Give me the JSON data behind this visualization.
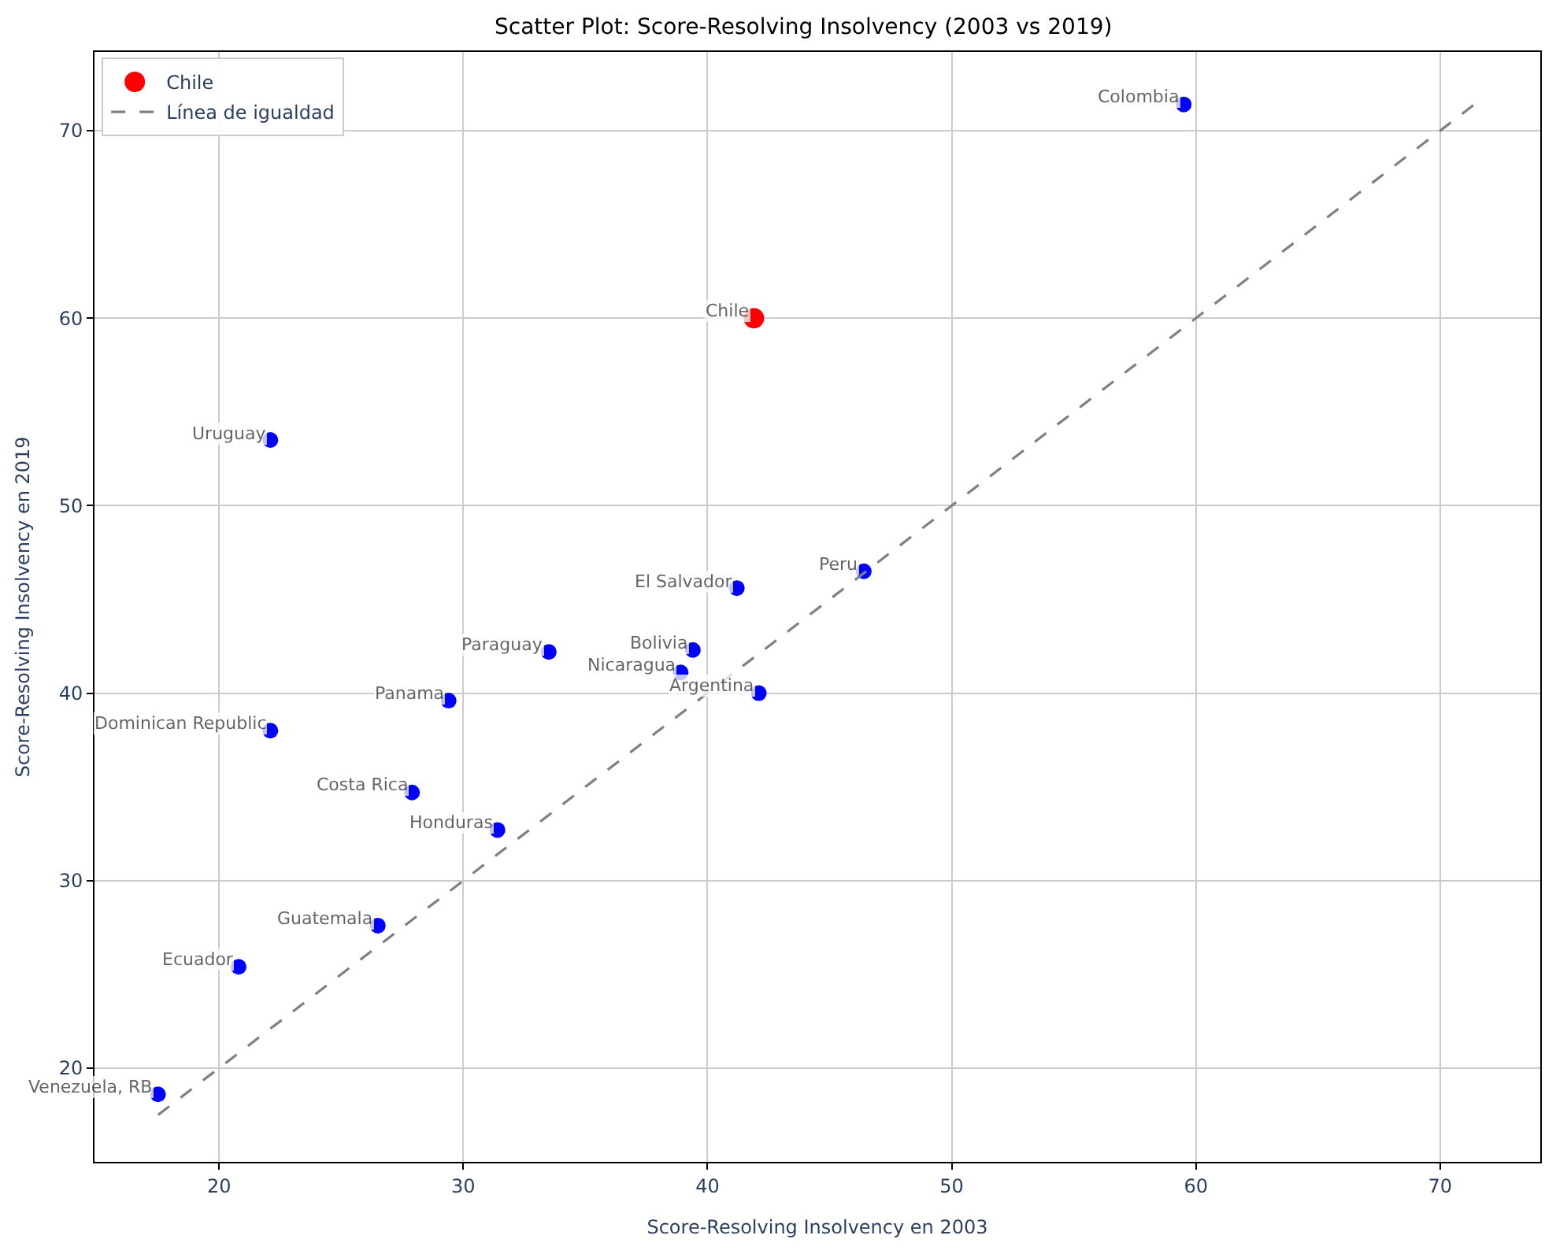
{
  "chart_data": {
    "type": "scatter",
    "title": "Scatter Plot: Score-Resolving Insolvency (2003 vs 2019)",
    "xlabel": "Score-Resolving Insolvency en 2003",
    "ylabel": "Score-Resolving Insolvency en 2019",
    "xlim": [
      14.9,
      74.1
    ],
    "ylim": [
      15.0,
      74.2
    ],
    "xticks": [
      20,
      30,
      40,
      50,
      60,
      70
    ],
    "yticks": [
      20,
      30,
      40,
      50,
      60,
      70
    ],
    "grid": true,
    "legend": "top left",
    "marker": "circle",
    "series": [
      {
        "color": "#0000ff",
        "x": [
          59.5,
          22.1,
          46.4,
          41.2,
          33.5,
          39.4,
          38.9,
          42.1,
          29.4,
          22.1,
          27.9,
          31.4,
          26.5,
          20.8,
          17.5
        ],
        "values": [
          71.4,
          53.5,
          46.5,
          45.6,
          42.2,
          42.3,
          41.1,
          40.0,
          39.6,
          38.0,
          34.7,
          32.7,
          27.6,
          25.4,
          18.6
        ]
      },
      {
        "name": "Chile",
        "color": "#ff0000",
        "x": [
          41.9
        ],
        "values": [
          60.0
        ]
      },
      {
        "type": "line",
        "name": "Línea de igualdad",
        "color": "#808080",
        "line_style": "dashed",
        "marker": "none",
        "x": [
          17.5,
          71.4
        ],
        "values": [
          17.5,
          71.4
        ]
      }
    ],
    "annotations": [
      {
        "text": "Colombia",
        "x": 59.5,
        "y": 71.4
      },
      {
        "text": "Chile",
        "x": 41.9,
        "y": 60.0
      },
      {
        "text": "Uruguay",
        "x": 22.1,
        "y": 53.5
      },
      {
        "text": "Peru",
        "x": 46.4,
        "y": 46.5
      },
      {
        "text": "El Salvador",
        "x": 41.2,
        "y": 45.6
      },
      {
        "text": "Paraguay",
        "x": 33.5,
        "y": 42.2
      },
      {
        "text": "Bolivia",
        "x": 39.4,
        "y": 42.3
      },
      {
        "text": "Nicaragua",
        "x": 38.9,
        "y": 41.1
      },
      {
        "text": "Argentina",
        "x": 42.1,
        "y": 40.0
      },
      {
        "text": "Panama",
        "x": 29.4,
        "y": 39.6
      },
      {
        "text": "Dominican Republic",
        "x": 22.1,
        "y": 38.0
      },
      {
        "text": "Costa Rica",
        "x": 27.9,
        "y": 34.7
      },
      {
        "text": "Honduras",
        "x": 31.4,
        "y": 32.7
      },
      {
        "text": "Guatemala",
        "x": 26.5,
        "y": 27.6
      },
      {
        "text": "Ecuador",
        "x": 20.8,
        "y": 25.4
      },
      {
        "text": "Venezuela, RB",
        "x": 17.5,
        "y": 18.6
      }
    ]
  }
}
